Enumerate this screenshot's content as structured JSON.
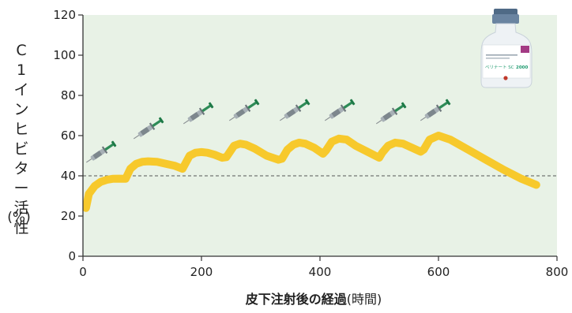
{
  "chart_data": {
    "type": "line",
    "title": "",
    "xlabel": "皮下注射後の経過",
    "xlabel_unit": "(時間)",
    "ylabel": "C1インヒビター活性",
    "ylabel_unit": "(%)",
    "xlim": [
      0,
      800
    ],
    "ylim": [
      0,
      120
    ],
    "xticks": [
      0,
      200,
      400,
      600,
      800
    ],
    "yticks": [
      0,
      20,
      40,
      60,
      80,
      100,
      120
    ],
    "xtick_labels": [
      "0",
      "200",
      "400",
      "600",
      "800"
    ],
    "ytick_labels": [
      "0",
      "20",
      "40",
      "60",
      "80",
      "100",
      "120"
    ],
    "reference_line": {
      "y": 40,
      "style": "dashed"
    },
    "grid": false,
    "series": [
      {
        "color": "#f7c92c",
        "x": [
          5,
          10,
          20,
          30,
          40,
          50,
          60,
          72,
          80,
          90,
          100,
          110,
          125,
          140,
          155,
          168,
          180,
          190,
          200,
          210,
          222,
          235,
          242,
          255,
          265,
          275,
          290,
          310,
          330,
          336,
          345,
          355,
          365,
          375,
          390,
          405,
          410,
          420,
          432,
          445,
          460,
          480,
          500,
          505,
          515,
          527,
          540,
          555,
          570,
          575,
          585,
          600,
          620,
          650,
          680,
          710,
          740,
          765
        ],
        "y": [
          24,
          31,
          35,
          37,
          38,
          38.5,
          38.6,
          38.5,
          43.5,
          46,
          47,
          47.2,
          47,
          46,
          45,
          43.5,
          50,
          51.5,
          51.8,
          51.5,
          50.5,
          49,
          49.3,
          55,
          56,
          55.5,
          53.5,
          50,
          48,
          48.5,
          53,
          55.5,
          56.5,
          56,
          54,
          51,
          52.5,
          57,
          58.5,
          58,
          55,
          52,
          49,
          51.5,
          55,
          56.5,
          56,
          54,
          52,
          53,
          58,
          60,
          58,
          53,
          48,
          43,
          38.5,
          35.5
        ]
      }
    ],
    "injection_markers": [
      "syringe-1",
      "syringe-2",
      "syringe-3",
      "syringe-4",
      "syringe-5",
      "syringe-6",
      "syringe-7",
      "syringe-8"
    ]
  },
  "colors": {
    "plot_background": "#e8f2e6",
    "curve": "#f7c92c",
    "axis": "#333333",
    "reference_line": "#555555",
    "syringe_plunger": "#2e8b57",
    "syringe_barrel": "#9aa3a8"
  },
  "vial_label": {
    "brand": "ベリナート SC",
    "strength": "2000"
  }
}
